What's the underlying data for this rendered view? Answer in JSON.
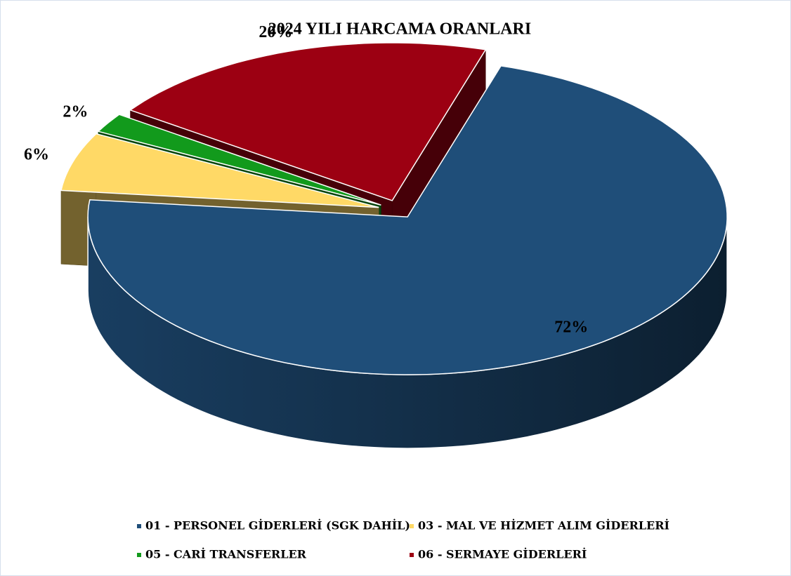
{
  "chart_data": {
    "type": "pie",
    "title": "2024 YILI HARCAMA ORANLARI",
    "categories": [
      "01 - PERSONEL GİDERLERİ (SGK DAHİL)",
      "03 - MAL VE HİZMET ALIM GİDERLERİ",
      "05 - CARİ TRANSFERLER",
      "06 - SERMAYE GİDERLERİ"
    ],
    "values": [
      72,
      6,
      2,
      20
    ],
    "value_labels": [
      "72%",
      "6%",
      "2%",
      "20%"
    ],
    "colors": [
      "#1f4e79",
      "#ffd966",
      "#129a1c",
      "#9c0012"
    ],
    "legend": "bottom"
  }
}
